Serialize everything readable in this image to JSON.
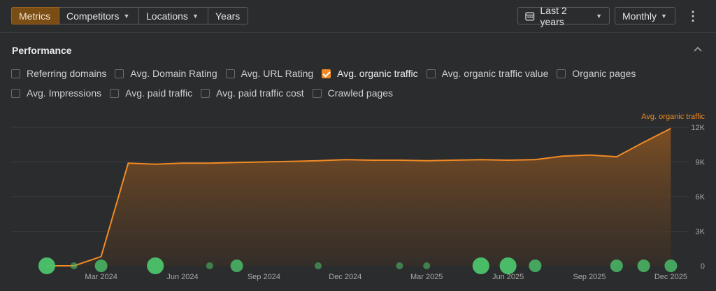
{
  "toolbar": {
    "tabs": [
      {
        "label": "Metrics",
        "active": true,
        "dropdown": false
      },
      {
        "label": "Competitors",
        "active": false,
        "dropdown": true
      },
      {
        "label": "Locations",
        "active": false,
        "dropdown": true
      },
      {
        "label": "Years",
        "active": false,
        "dropdown": false
      }
    ],
    "date_range": {
      "label": "Last 2 years",
      "icon": "calendar-icon"
    },
    "interval": {
      "label": "Monthly"
    },
    "more_icon": "more-vertical-icon"
  },
  "section": {
    "title": "Performance",
    "collapse_icon": "chevron-up-icon"
  },
  "metrics": [
    {
      "label": "Referring domains",
      "checked": false
    },
    {
      "label": "Avg. Domain Rating",
      "checked": false
    },
    {
      "label": "Avg. URL Rating",
      "checked": false
    },
    {
      "label": "Avg. organic traffic",
      "checked": true
    },
    {
      "label": "Avg. organic traffic value",
      "checked": false
    },
    {
      "label": "Organic pages",
      "checked": false
    },
    {
      "label": "Avg. Impressions",
      "checked": false
    },
    {
      "label": "Avg. paid traffic",
      "checked": false
    },
    {
      "label": "Avg. paid traffic cost",
      "checked": false
    },
    {
      "label": "Crawled pages",
      "checked": false
    }
  ],
  "colors": {
    "accent": "#f08a24",
    "event_dot": "#4cc46a"
  },
  "chart_data": {
    "type": "area",
    "series": [
      {
        "name": "Avg. organic traffic",
        "x": [
          "2024-01",
          "2024-02",
          "2024-03",
          "2024-04",
          "2024-05",
          "2024-06",
          "2024-07",
          "2024-08",
          "2024-09",
          "2024-10",
          "2024-11",
          "2024-12",
          "2025-01",
          "2025-02",
          "2025-03",
          "2025-04",
          "2025-05",
          "2025-06",
          "2025-07",
          "2025-08",
          "2025-09",
          "2025-10",
          "2025-11",
          "2025-12"
        ],
        "values": [
          0,
          0,
          800,
          8900,
          8800,
          8900,
          8900,
          8950,
          9000,
          9050,
          9100,
          9200,
          9150,
          9150,
          9100,
          9150,
          9200,
          9150,
          9200,
          9500,
          9600,
          9450,
          10700,
          11900
        ]
      }
    ],
    "xtick_labels": [
      "Mar 2024",
      "Jun 2024",
      "Sep 2024",
      "Dec 2024",
      "Mar 2025",
      "Jun 2025",
      "Sep 2025",
      "Dec 2025"
    ],
    "xtick_months": [
      "2024-03",
      "2024-06",
      "2024-09",
      "2024-12",
      "2025-03",
      "2025-06",
      "2025-09",
      "2025-12"
    ],
    "ytick_labels": [
      "0",
      "3K",
      "6K",
      "9K",
      "12K"
    ],
    "yticks": [
      0,
      3000,
      6000,
      9000,
      12000
    ],
    "ylim": [
      0,
      12000
    ],
    "axis_title": "Avg. organic traffic",
    "grid": true,
    "events": [
      {
        "x": "2024-01",
        "size": "large"
      },
      {
        "x": "2024-02",
        "size": "small"
      },
      {
        "x": "2024-03",
        "size": "medium"
      },
      {
        "x": "2024-05",
        "size": "large"
      },
      {
        "x": "2024-07",
        "size": "small"
      },
      {
        "x": "2024-08",
        "size": "medium"
      },
      {
        "x": "2024-11",
        "size": "small"
      },
      {
        "x": "2025-02",
        "size": "small"
      },
      {
        "x": "2025-03",
        "size": "small"
      },
      {
        "x": "2025-05",
        "size": "large"
      },
      {
        "x": "2025-06",
        "size": "large"
      },
      {
        "x": "2025-07",
        "size": "medium"
      },
      {
        "x": "2025-10",
        "size": "medium"
      },
      {
        "x": "2025-11",
        "size": "medium"
      },
      {
        "x": "2025-12",
        "size": "medium"
      }
    ]
  }
}
